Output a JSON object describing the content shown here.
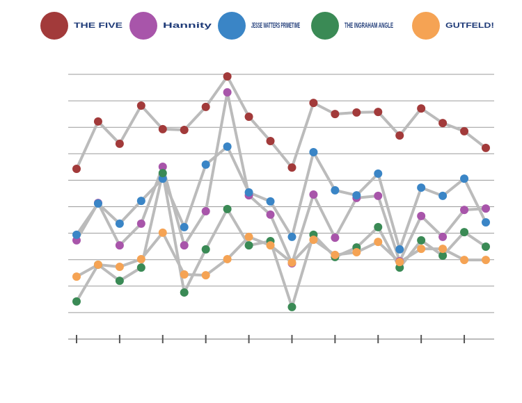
{
  "chart_data": {
    "type": "line",
    "categories": [
      null,
      null,
      null,
      null,
      null,
      null,
      null,
      null,
      null,
      null,
      null,
      null,
      null,
      null,
      null,
      null,
      null,
      null,
      null,
      null
    ],
    "series": [
      {
        "name": "THE FIVE",
        "color": "#a23a3a",
        "values": [
          6.43,
          8.22,
          7.38,
          8.82,
          7.93,
          7.9,
          8.77,
          9.92,
          8.4,
          7.48,
          6.48,
          8.92,
          8.5,
          8.56,
          8.58,
          7.69,
          8.71,
          8.16,
          7.85,
          7.22
        ]
      },
      {
        "name": "Hannity",
        "color": "#a855aa",
        "values": [
          3.73,
          5.14,
          3.54,
          4.36,
          6.51,
          3.54,
          4.83,
          9.32,
          5.43,
          4.7,
          2.86,
          5.46,
          3.83,
          5.33,
          5.41,
          2.94,
          4.65,
          3.86,
          4.88,
          4.93
        ]
      },
      {
        "name": "JESSE WATTERS PRIMETIME",
        "color": "#3a85c6",
        "values": [
          3.94,
          5.12,
          4.36,
          5.22,
          6.06,
          4.23,
          6.59,
          7.27,
          5.54,
          5.2,
          3.86,
          7.06,
          5.62,
          5.43,
          6.25,
          3.39,
          5.72,
          5.41,
          6.06,
          4.41
        ]
      },
      {
        "name": "THE INGRAHAM ANGLE",
        "color": "#3a8a55",
        "values": [
          1.42,
          2.81,
          2.2,
          2.7,
          6.27,
          1.76,
          3.39,
          4.91,
          3.54,
          3.7,
          1.21,
          3.94,
          3.1,
          3.46,
          4.23,
          2.7,
          3.73,
          3.15,
          4.04,
          3.49
        ]
      },
      {
        "name": "GUTFELD!",
        "color": "#f5a354",
        "values": [
          2.36,
          2.81,
          2.73,
          3.02,
          4.02,
          2.44,
          2.41,
          3.02,
          3.86,
          3.54,
          2.89,
          3.75,
          3.18,
          3.28,
          3.67,
          2.91,
          3.41,
          3.41,
          2.99,
          2.99
        ]
      }
    ],
    "ylim": [
      0,
      10
    ],
    "yticks": [
      1,
      2,
      3,
      4,
      5,
      6,
      7,
      8,
      9,
      10
    ],
    "grid": true,
    "line_color": "#bbbbbb"
  }
}
